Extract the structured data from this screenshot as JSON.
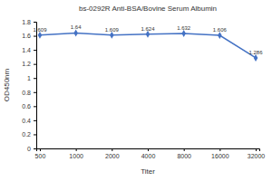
{
  "chart_data": {
    "type": "line",
    "title": "bs-0292R Anti-BSA/Bovine Serum Albumin",
    "x_label": "Titer",
    "y_label": "OD450nm",
    "categories": [
      "500",
      "1000",
      "2000",
      "4000",
      "8000",
      "16000",
      "32000"
    ],
    "values": [
      1.609,
      1.64,
      1.609,
      1.624,
      1.632,
      1.606,
      1.286
    ],
    "color": "#4472c4",
    "marker": "diamond",
    "ylim": [
      0,
      1.8
    ],
    "yticks": [
      0,
      0.2,
      0.4,
      0.6,
      0.8,
      1,
      1.2,
      1.4,
      1.6,
      1.8
    ],
    "grid": false,
    "data_labels": true
  }
}
